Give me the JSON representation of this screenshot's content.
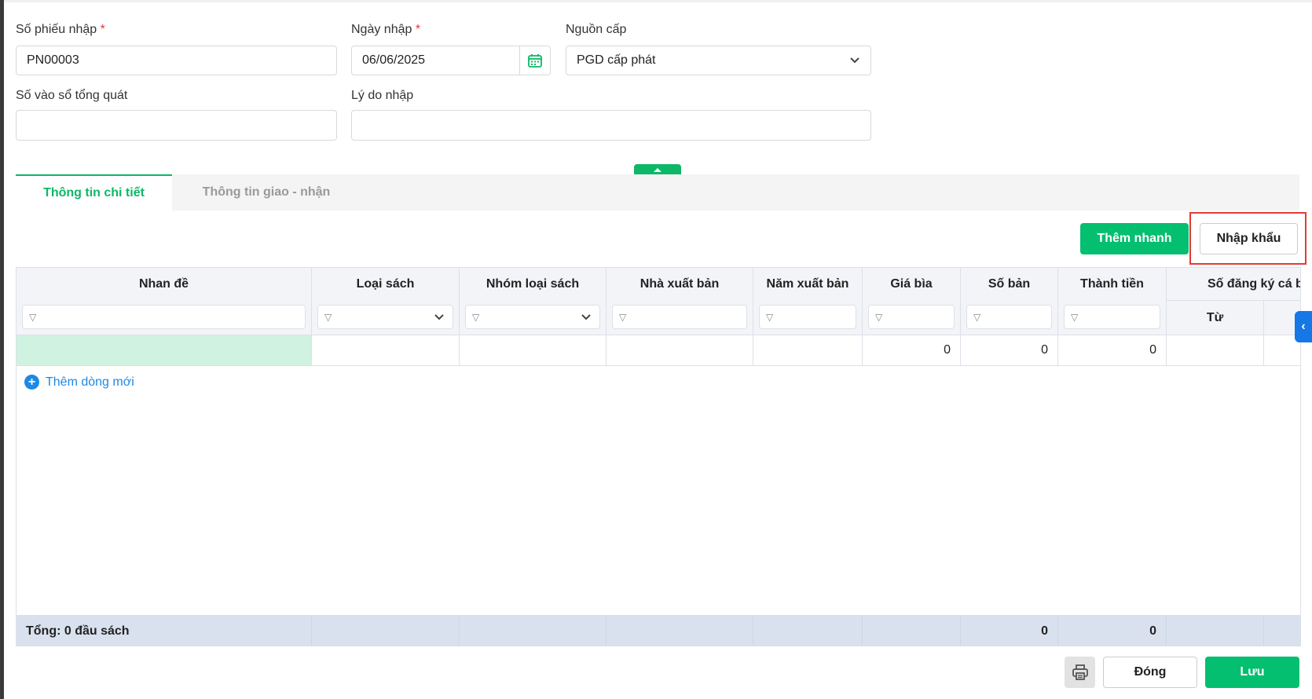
{
  "form": {
    "so_phieu_nhap": {
      "label": "Số phiếu nhập",
      "required_mark": "*",
      "value": "PN00003"
    },
    "ngay_nhap": {
      "label": "Ngày nhập",
      "required_mark": "*",
      "value": "06/06/2025"
    },
    "nguon_cap": {
      "label": "Nguồn cấp",
      "value": "PGD cấp phát"
    },
    "so_vao_so_tong_quat": {
      "label": "Số vào sổ tổng quát",
      "value": ""
    },
    "ly_do_nhap": {
      "label": "Lý do nhập",
      "value": ""
    }
  },
  "tabs": [
    {
      "label": "Thông tin chi tiết",
      "active": true
    },
    {
      "label": "Thông tin giao - nhận",
      "active": false
    }
  ],
  "toolbar": {
    "them_nhanh": "Thêm nhanh",
    "nhap_khau": "Nhập khẩu"
  },
  "table": {
    "columns": [
      "Nhan đề",
      "Loại sách",
      "Nhóm loại sách",
      "Nhà xuất bản",
      "Năm xuất bản",
      "Giá bìa",
      "Số bản",
      "Thành tiền",
      "Số đăng ký cá biệt"
    ],
    "sub_columns": [
      "Từ"
    ],
    "row": [
      "",
      "",
      "",
      "",
      "",
      "0",
      "0",
      "0",
      ""
    ],
    "add_row": "Thêm dòng mới",
    "footer": {
      "label": "Tổng: 0 đầu sách",
      "so_ban": "0",
      "thanh_tien": "0"
    }
  },
  "actions": {
    "close": "Đóng",
    "save": "Lưu"
  },
  "colors": {
    "accent": "#04bf70",
    "link": "#1e88e5",
    "highlight_row": "#cff3e0",
    "footer": "#dae1ee"
  }
}
